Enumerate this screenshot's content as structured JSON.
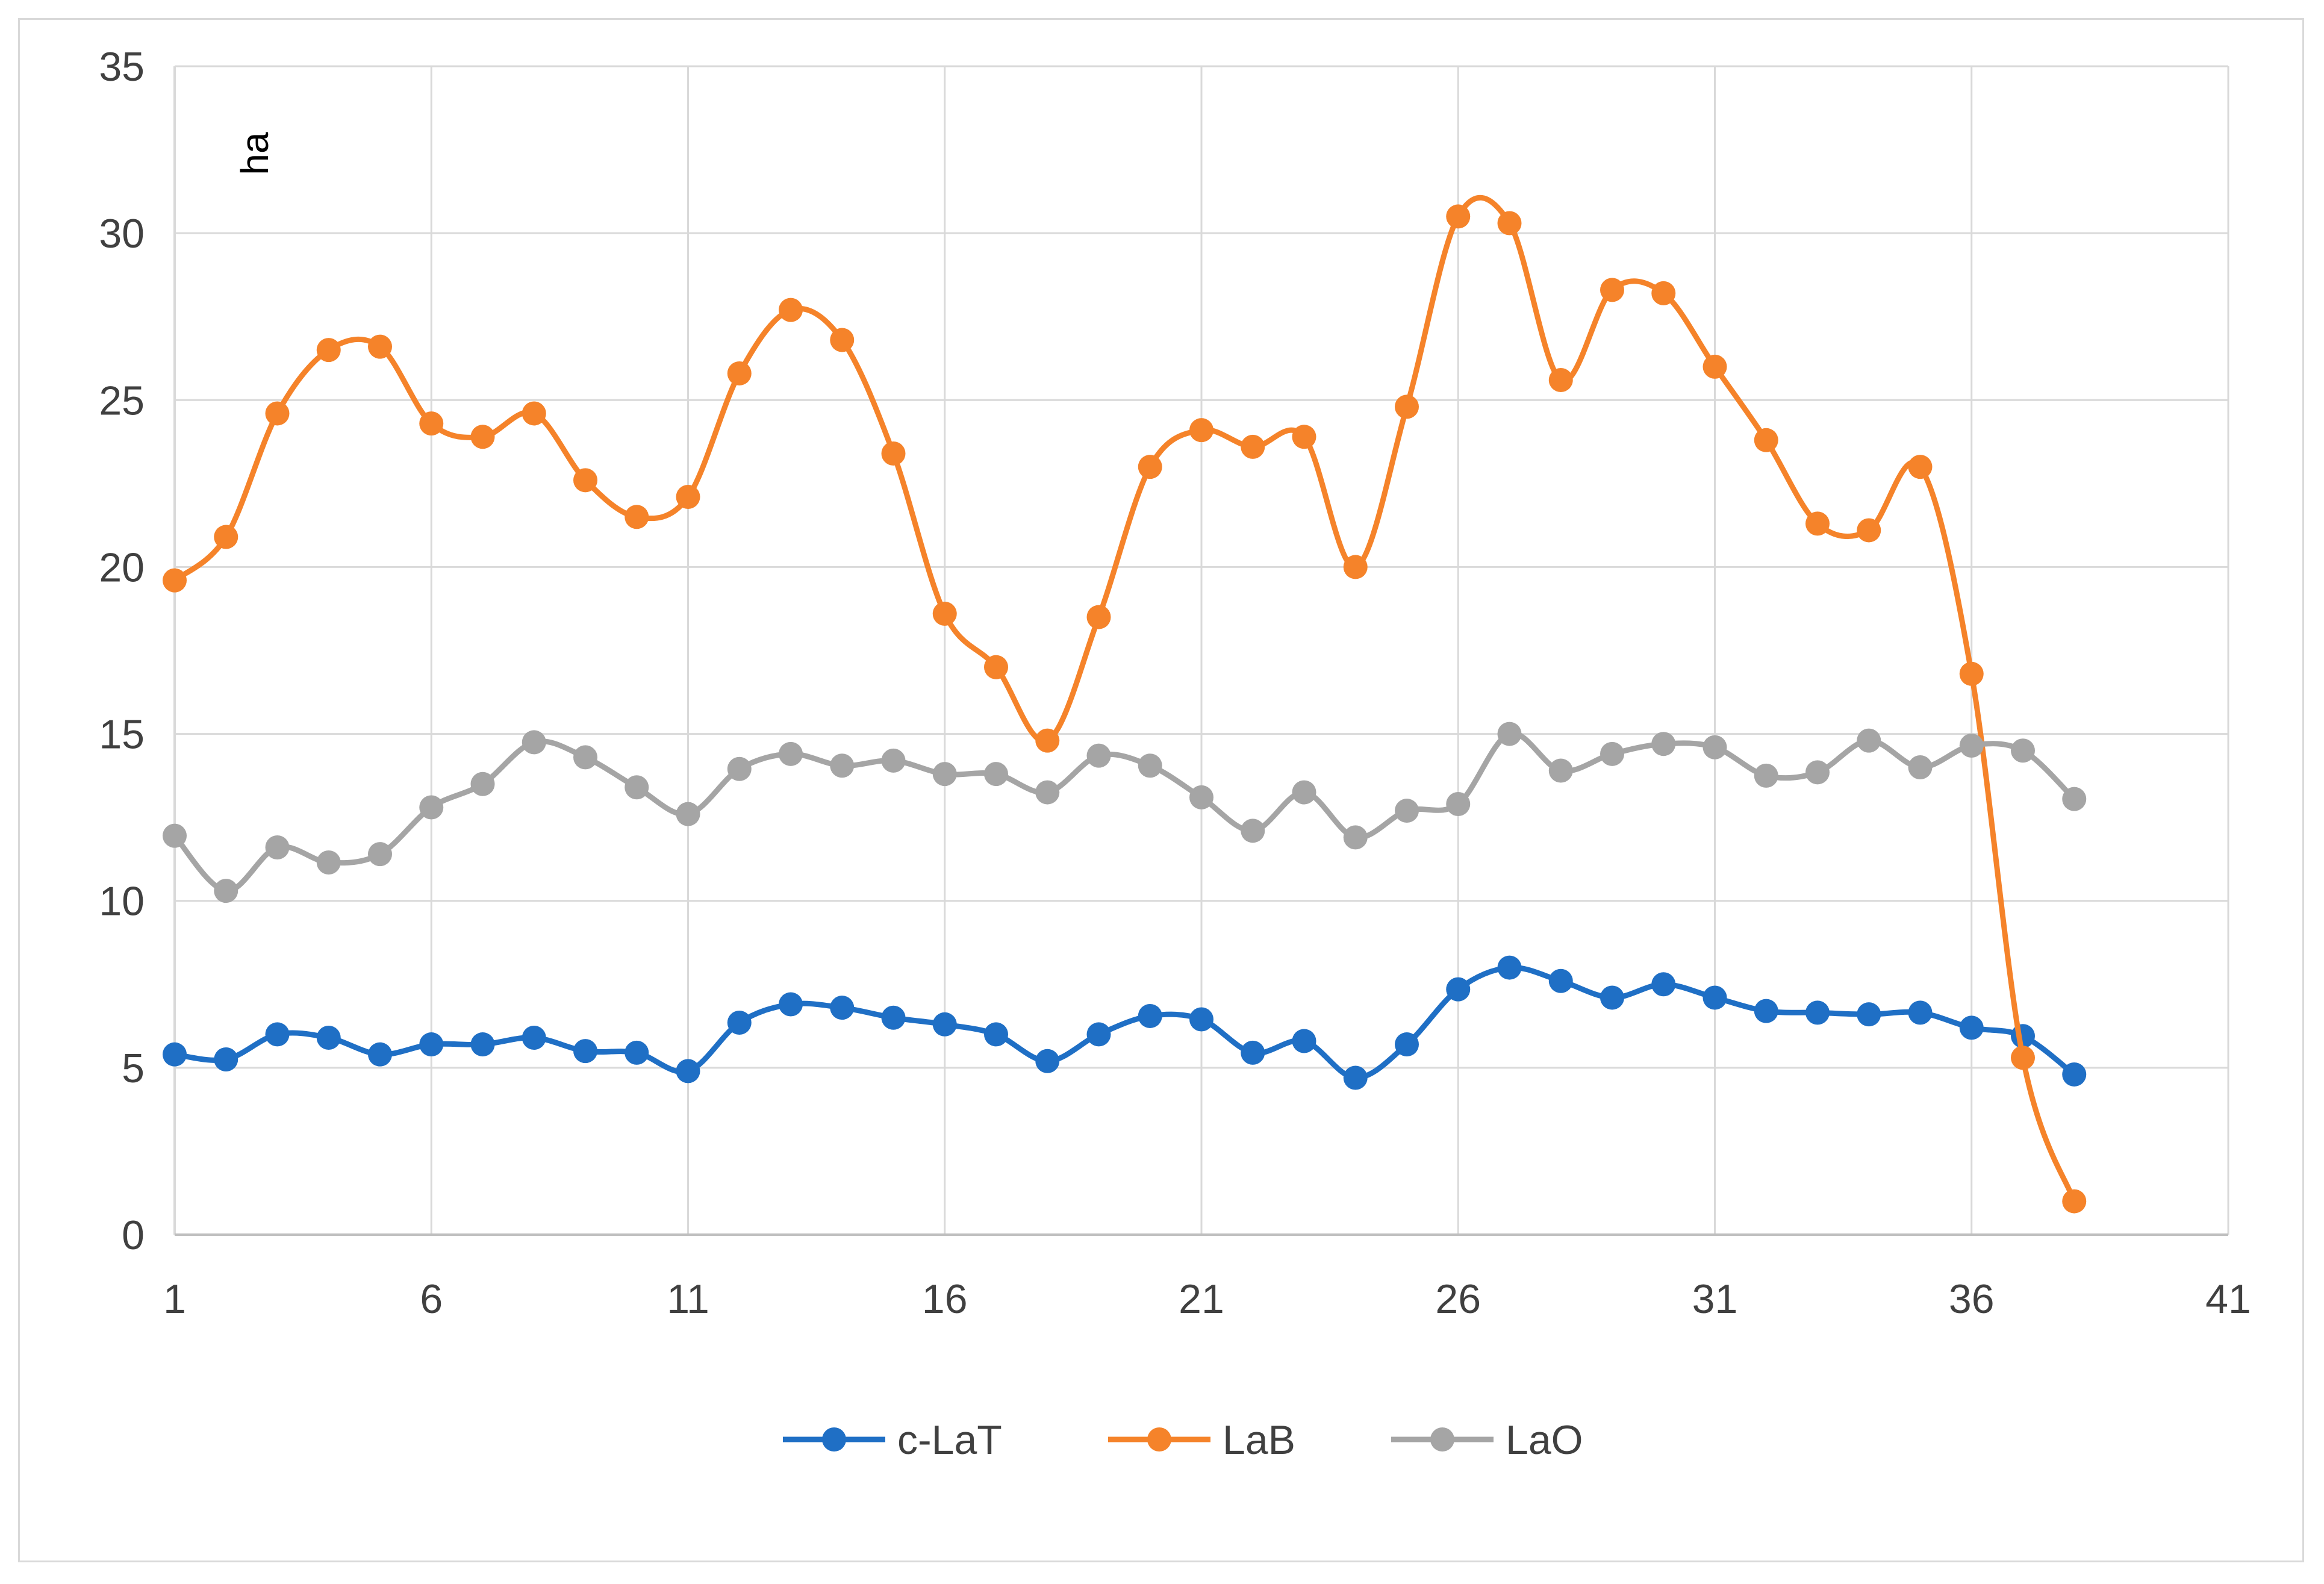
{
  "chart_data": {
    "type": "line",
    "title": "",
    "xlabel": "",
    "ylabel": "ha",
    "xlim": [
      1,
      41
    ],
    "ylim": [
      0,
      35
    ],
    "xticks": [
      1,
      6,
      11,
      16,
      21,
      26,
      31,
      36,
      41
    ],
    "yticks": [
      0,
      5,
      10,
      15,
      20,
      25,
      30,
      35
    ],
    "grid": true,
    "legend_position": "bottom",
    "x": [
      1,
      2,
      3,
      4,
      5,
      6,
      7,
      8,
      9,
      10,
      11,
      12,
      13,
      14,
      15,
      16,
      17,
      18,
      19,
      20,
      21,
      22,
      23,
      24,
      25,
      26,
      27,
      28,
      29,
      30,
      31,
      32,
      33,
      34,
      35,
      36,
      37,
      38
    ],
    "series": [
      {
        "name": "c-LaT",
        "color": "#1f6fc5",
        "values": [
          5.4,
          5.25,
          6.0,
          5.9,
          5.4,
          5.7,
          5.7,
          5.9,
          5.5,
          5.45,
          4.9,
          6.35,
          6.9,
          6.8,
          6.5,
          6.3,
          6.0,
          5.2,
          6.0,
          6.55,
          6.45,
          5.45,
          5.8,
          4.7,
          5.7,
          7.35,
          8.0,
          7.6,
          7.1,
          7.5,
          7.1,
          6.7,
          6.65,
          6.6,
          6.65,
          6.2,
          5.95,
          4.8
        ]
      },
      {
        "name": "LaB",
        "color": "#f5832a",
        "values": [
          19.6,
          20.9,
          24.6,
          26.5,
          26.6,
          24.3,
          23.9,
          24.6,
          22.6,
          21.5,
          22.1,
          25.8,
          27.7,
          26.8,
          23.4,
          18.6,
          17.0,
          14.8,
          18.5,
          23.0,
          24.1,
          23.6,
          23.9,
          20.0,
          24.8,
          30.5,
          30.3,
          25.6,
          28.3,
          28.2,
          26.0,
          23.8,
          21.3,
          21.1,
          23.0,
          16.8,
          5.3,
          1.0
        ]
      },
      {
        "name": "LaO",
        "color": "#a5a5a5",
        "values": [
          11.95,
          10.3,
          11.6,
          11.15,
          11.4,
          12.8,
          13.5,
          14.75,
          14.3,
          13.4,
          12.6,
          13.95,
          14.4,
          14.05,
          14.2,
          13.8,
          13.8,
          13.25,
          14.35,
          14.05,
          13.1,
          12.1,
          13.25,
          11.9,
          12.7,
          12.9,
          15.0,
          13.9,
          14.4,
          14.7,
          14.6,
          13.75,
          13.85,
          14.8,
          14.0,
          14.65,
          14.5,
          13.05
        ]
      }
    ]
  }
}
